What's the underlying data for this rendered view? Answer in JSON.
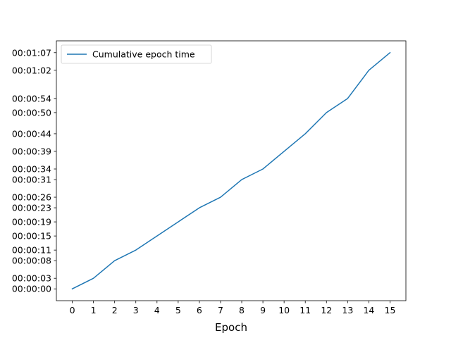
{
  "chart_data": {
    "type": "line",
    "title": "",
    "xlabel": "Epoch",
    "ylabel": "",
    "x": [
      0,
      1,
      2,
      3,
      4,
      5,
      6,
      7,
      8,
      9,
      10,
      11,
      12,
      13,
      14,
      15
    ],
    "series": [
      {
        "name": "Cumulative epoch time",
        "color": "#1f77b4",
        "values_seconds": [
          0,
          3,
          8,
          11,
          15,
          19,
          23,
          26,
          31,
          34,
          39,
          44,
          50,
          54,
          62,
          67
        ]
      }
    ],
    "xticks": [
      "0",
      "1",
      "2",
      "3",
      "4",
      "5",
      "6",
      "7",
      "8",
      "9",
      "10",
      "11",
      "12",
      "13",
      "14",
      "15"
    ],
    "yticks": [
      {
        "value": 0,
        "label": "00:00:00"
      },
      {
        "value": 3,
        "label": "00:00:03"
      },
      {
        "value": 8,
        "label": "00:00:08"
      },
      {
        "value": 11,
        "label": "00:00:11"
      },
      {
        "value": 15,
        "label": "00:00:15"
      },
      {
        "value": 19,
        "label": "00:00:19"
      },
      {
        "value": 23,
        "label": "00:00:23"
      },
      {
        "value": 26,
        "label": "00:00:26"
      },
      {
        "value": 31,
        "label": "00:00:31"
      },
      {
        "value": 34,
        "label": "00:00:34"
      },
      {
        "value": 39,
        "label": "00:00:39"
      },
      {
        "value": 44,
        "label": "00:00:44"
      },
      {
        "value": 50,
        "label": "00:00:50"
      },
      {
        "value": 54,
        "label": "00:00:54"
      },
      {
        "value": 62,
        "label": "00:01:02"
      },
      {
        "value": 67,
        "label": "00:01:07"
      }
    ],
    "xlim": [
      -0.75,
      15.75
    ],
    "ylim": [
      -3.35,
      70.35
    ],
    "grid": false,
    "legend": {
      "placement": "top-left"
    }
  }
}
